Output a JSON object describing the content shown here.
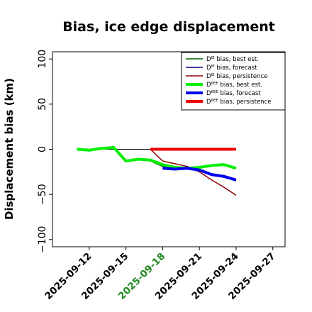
{
  "chart_data": {
    "type": "line",
    "title": "Bias, ice edge displacement",
    "xlabel": "",
    "ylabel": "Displacement bias (km)",
    "x_tick_labels": [
      "2025-09-12",
      "2025-09-15",
      "2025-09-18",
      "2025-09-21",
      "2025-09-24",
      "2025-09-27"
    ],
    "highlighted_tick": "2025-09-18",
    "highlight_color": "#228b22",
    "x_range": [
      "2025-09-09",
      "2025-09-28"
    ],
    "y_ticks": [
      -100,
      -50,
      0,
      50,
      100
    ],
    "ylim": [
      -108,
      108
    ],
    "zero_line": true,
    "grid": false,
    "legend_position": "top-right",
    "series": [
      {
        "name_parts": [
          "D",
          "IE",
          " bias, best est."
        ],
        "color": "#006400",
        "width": 1.5,
        "x": [
          "2025-09-11",
          "2025-09-12",
          "2025-09-13",
          "2025-09-14",
          "2025-09-15",
          "2025-09-16",
          "2025-09-17",
          "2025-09-18",
          "2025-09-19",
          "2025-09-20",
          "2025-09-21",
          "2025-09-22",
          "2025-09-23",
          "2025-09-24"
        ],
        "y": [
          0,
          -2,
          1,
          2,
          -12,
          -11,
          -13,
          -19,
          -20,
          -21,
          -21,
          -18,
          -17,
          -21
        ]
      },
      {
        "name_parts": [
          "D",
          "IE",
          " bias, forecast"
        ],
        "color": "#00008b",
        "width": 1.5,
        "x": [
          "2025-09-18",
          "2025-09-19",
          "2025-09-20",
          "2025-09-21",
          "2025-09-22",
          "2025-09-23",
          "2025-09-24"
        ],
        "y": [
          -21,
          -22,
          -22,
          -24,
          -29,
          -31,
          -35
        ]
      },
      {
        "name_parts": [
          "D",
          "IE",
          " bias, persistence"
        ],
        "color": "#8b0000",
        "width": 1.5,
        "x": [
          "2025-09-17",
          "2025-09-18",
          "2025-09-19",
          "2025-09-20",
          "2025-09-21",
          "2025-09-22",
          "2025-09-23",
          "2025-09-24"
        ],
        "y": [
          0,
          -13,
          -16,
          -19,
          -25,
          -34,
          -42,
          -51
        ]
      },
      {
        "name_parts": [
          "D",
          "IIEE",
          " bias, best est."
        ],
        "color": "#00ee00",
        "width": 4,
        "x": [
          "2025-09-11",
          "2025-09-12",
          "2025-09-13",
          "2025-09-14",
          "2025-09-15",
          "2025-09-16",
          "2025-09-17",
          "2025-09-18",
          "2025-09-19",
          "2025-09-20",
          "2025-09-21",
          "2025-09-22",
          "2025-09-23",
          "2025-09-24"
        ],
        "y": [
          0,
          -1,
          1,
          2,
          -13,
          -11,
          -12,
          -17,
          -20,
          -21,
          -20,
          -18,
          -17,
          -21
        ]
      },
      {
        "name_parts": [
          "D",
          "IIEE",
          " bias, forecast"
        ],
        "color": "#0000ee",
        "width": 4,
        "x": [
          "2025-09-18",
          "2025-09-19",
          "2025-09-20",
          "2025-09-21",
          "2025-09-22",
          "2025-09-23",
          "2025-09-24"
        ],
        "y": [
          -21,
          -22,
          -21,
          -23,
          -28,
          -30,
          -34
        ]
      },
      {
        "name_parts": [
          "D",
          "IIEE",
          " bias, persistence"
        ],
        "color": "#ee0000",
        "width": 4,
        "x": [
          "2025-09-17",
          "2025-09-18",
          "2025-09-19",
          "2025-09-20",
          "2025-09-21",
          "2025-09-22",
          "2025-09-23",
          "2025-09-24"
        ],
        "y": [
          0,
          0,
          0,
          0,
          0,
          0,
          0,
          0
        ]
      }
    ]
  }
}
